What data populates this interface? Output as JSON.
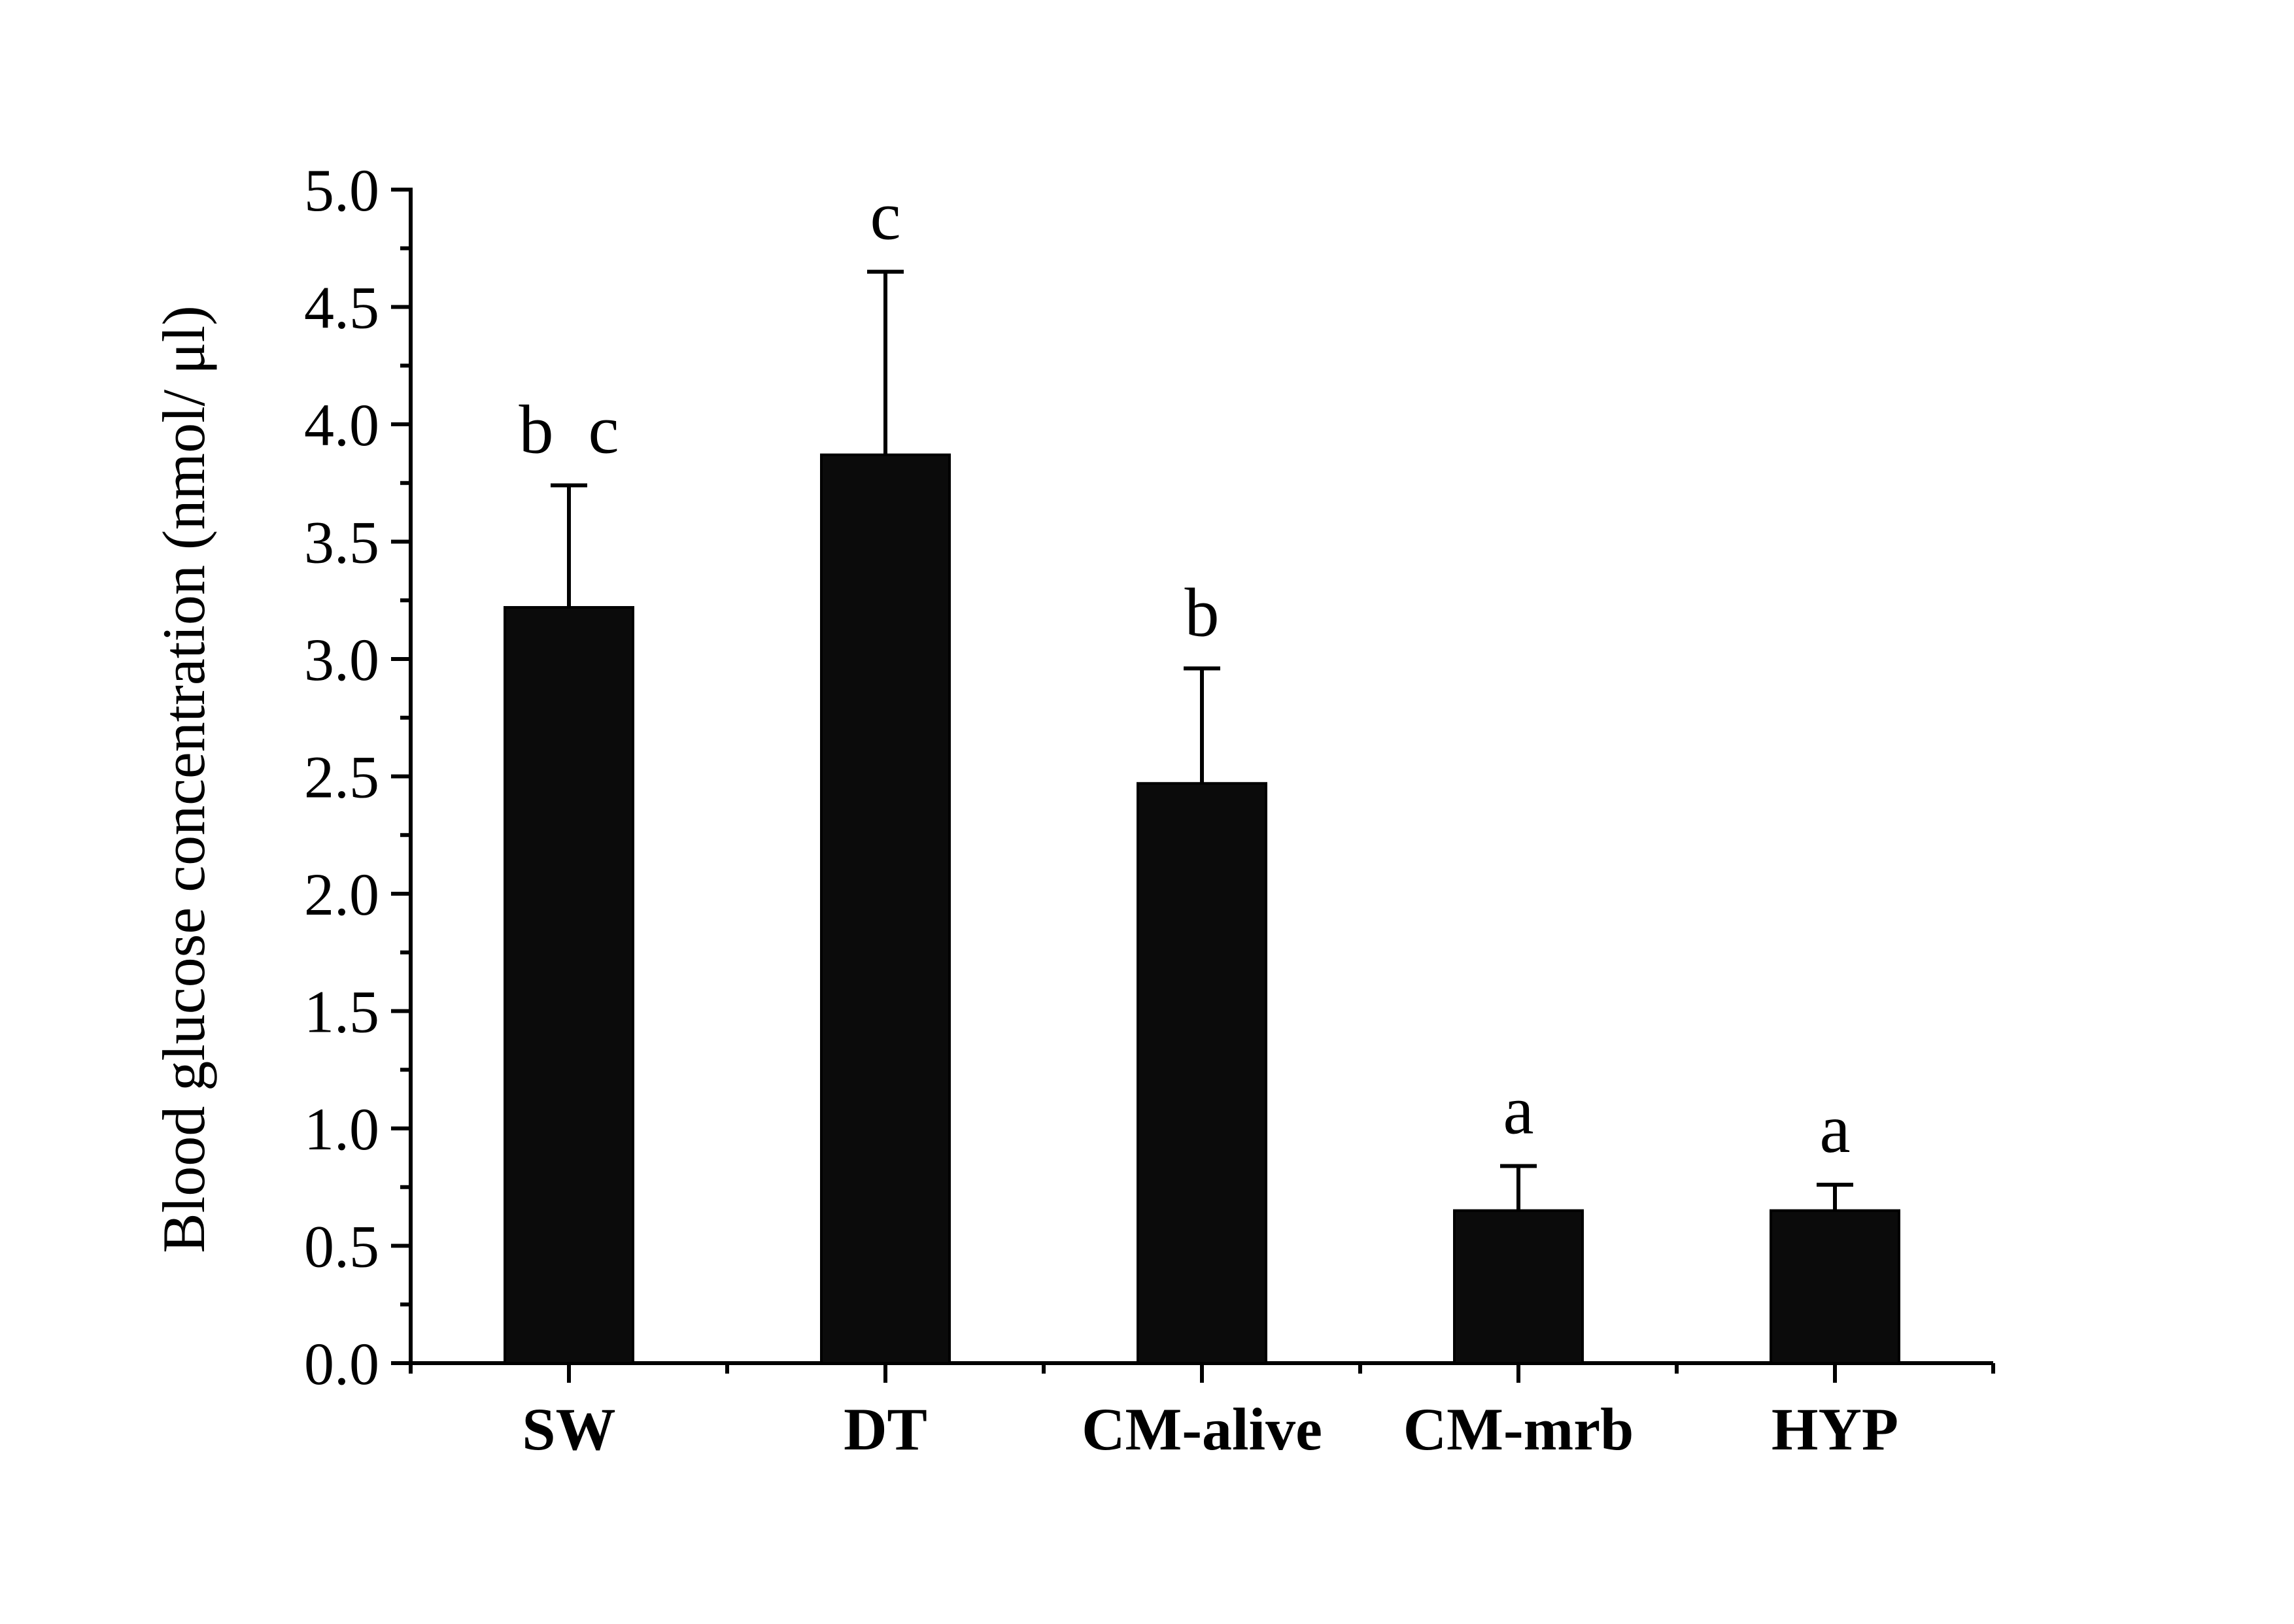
{
  "chart_data": {
    "type": "bar",
    "title": "",
    "xlabel": "",
    "ylabel": "Blood glucose concentration (nmol/ μl)",
    "ylim": [
      0,
      5.0
    ],
    "y_ticks": [
      "0.0",
      "0.5",
      "1.0",
      "1.5",
      "2.0",
      "2.5",
      "3.0",
      "3.5",
      "4.0",
      "4.5",
      "5.0"
    ],
    "y_minor_step": 0.25,
    "categories": [
      "SW",
      "DT",
      "CM-alive",
      "CM-mrb",
      "HYP"
    ],
    "values": [
      3.22,
      3.87,
      2.47,
      0.65,
      0.65
    ],
    "error_upper": [
      0.52,
      0.78,
      0.49,
      0.19,
      0.11
    ],
    "significance": [
      "b  c",
      "c",
      "b",
      "a",
      "a"
    ],
    "bar_color": "#0b0b0b",
    "grid": false,
    "legend": "none"
  }
}
